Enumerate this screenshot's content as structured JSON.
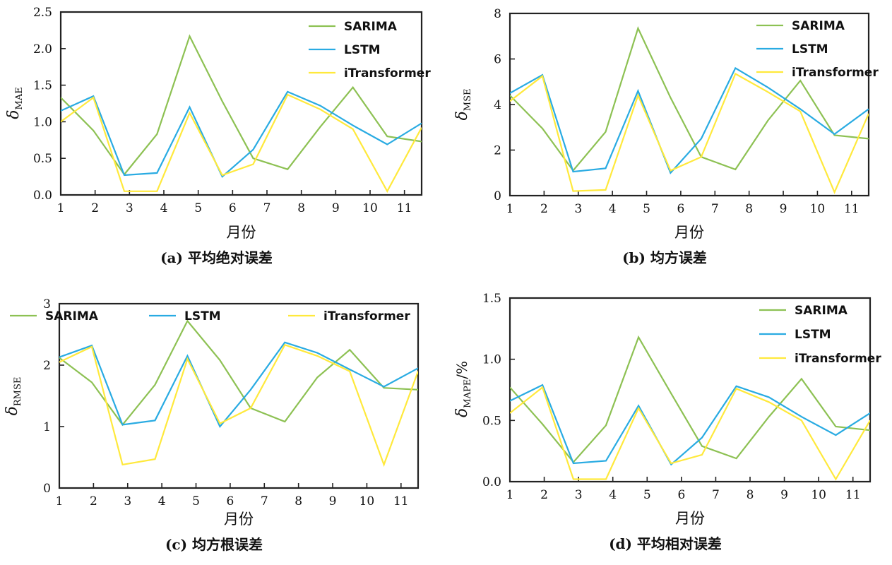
{
  "colors": {
    "SARIMA": "#8dc153",
    "LSTM": "#29abe2",
    "iTransformer": "#ffe93c",
    "axis": "#222222"
  },
  "chart_data": [
    {
      "panel": "a",
      "type": "line",
      "caption": "(a) 平均绝对误差",
      "xlabel": "月份",
      "ylabel_symbol": "δ",
      "ylabel_sub": "MAE",
      "ylabel_rest": "",
      "xlim": [
        1,
        11.5
      ],
      "ylim": [
        0,
        2.5
      ],
      "xticks": [
        "1",
        "2",
        "3",
        "4",
        "5",
        "6",
        "7",
        "8",
        "9",
        "10",
        "11"
      ],
      "yticks": [
        "0.0",
        "0.5",
        "1.0",
        "1.5",
        "2.0",
        "2.5"
      ],
      "legend_position": "top-right",
      "x": [
        1,
        1.95,
        2.85,
        3.8,
        4.75,
        5.7,
        6.6,
        7.6,
        8.55,
        9.5,
        10.5,
        11.5
      ],
      "series": [
        {
          "name": "SARIMA",
          "values": [
            1.33,
            0.88,
            0.28,
            0.83,
            2.17,
            1.28,
            0.5,
            0.35,
            0.93,
            1.47,
            0.8,
            0.73
          ]
        },
        {
          "name": "LSTM",
          "values": [
            1.15,
            1.35,
            0.27,
            0.3,
            1.2,
            0.25,
            0.62,
            1.41,
            1.22,
            0.95,
            0.69,
            0.98
          ]
        },
        {
          "name": "iTransformer",
          "values": [
            1.0,
            1.33,
            0.05,
            0.05,
            1.12,
            0.27,
            0.42,
            1.37,
            1.17,
            0.9,
            0.05,
            0.92
          ]
        }
      ]
    },
    {
      "panel": "b",
      "type": "line",
      "caption": "(b) 均方误差",
      "xlabel": "月份",
      "ylabel_symbol": "δ",
      "ylabel_sub": "MSE",
      "ylabel_rest": "",
      "xlim": [
        1,
        11.5
      ],
      "ylim": [
        0,
        8
      ],
      "xticks": [
        "1",
        "2",
        "3",
        "4",
        "5",
        "6",
        "7",
        "8",
        "9",
        "10",
        "11"
      ],
      "yticks": [
        "0",
        "2",
        "4",
        "6",
        "8"
      ],
      "legend_position": "top-right",
      "x": [
        1,
        1.95,
        2.85,
        3.8,
        4.75,
        5.7,
        6.6,
        7.6,
        8.55,
        9.5,
        10.5,
        11.5
      ],
      "series": [
        {
          "name": "SARIMA",
          "values": [
            4.4,
            2.95,
            1.1,
            2.8,
            7.35,
            4.3,
            1.7,
            1.15,
            3.3,
            5.05,
            2.65,
            2.5
          ]
        },
        {
          "name": "LSTM",
          "values": [
            4.5,
            5.3,
            1.05,
            1.2,
            4.6,
            1.0,
            2.5,
            5.6,
            4.75,
            3.8,
            2.7,
            3.8
          ]
        },
        {
          "name": "iTransformer",
          "values": [
            4.15,
            5.25,
            0.2,
            0.25,
            4.4,
            1.1,
            1.7,
            5.35,
            4.55,
            3.7,
            0.15,
            3.6
          ]
        }
      ]
    },
    {
      "panel": "c",
      "type": "line",
      "caption": "(c) 均方根误差",
      "xlabel": "月份",
      "ylabel_symbol": "δ",
      "ylabel_sub": "RMSE",
      "ylabel_rest": "",
      "xlim": [
        1,
        11.5
      ],
      "ylim": [
        0,
        3
      ],
      "xticks": [
        "1",
        "2",
        "3",
        "4",
        "5",
        "6",
        "7",
        "8",
        "9",
        "10",
        "11"
      ],
      "yticks": [
        "0",
        "1",
        "2",
        "3"
      ],
      "legend_position": "top",
      "x": [
        1,
        1.95,
        2.85,
        3.8,
        4.75,
        5.7,
        6.6,
        7.6,
        8.55,
        9.5,
        10.5,
        11.5
      ],
      "series": [
        {
          "name": "SARIMA",
          "values": [
            2.12,
            1.72,
            1.03,
            1.68,
            2.72,
            2.08,
            1.3,
            1.08,
            1.8,
            2.25,
            1.63,
            1.6
          ]
        },
        {
          "name": "LSTM",
          "values": [
            2.13,
            2.32,
            1.03,
            1.1,
            2.15,
            1.0,
            1.6,
            2.37,
            2.2,
            1.93,
            1.65,
            1.95
          ]
        },
        {
          "name": "iTransformer",
          "values": [
            2.05,
            2.3,
            0.38,
            0.47,
            2.1,
            1.05,
            1.3,
            2.33,
            2.15,
            1.9,
            0.38,
            1.9
          ]
        }
      ]
    },
    {
      "panel": "d",
      "type": "line",
      "caption": "(d) 平均相对误差",
      "xlabel": "月份",
      "ylabel_symbol": "δ",
      "ylabel_sub": "MAPE",
      "ylabel_rest": "/%",
      "xlim": [
        1,
        11.5
      ],
      "ylim": [
        0,
        1.5
      ],
      "xticks": [
        "1",
        "2",
        "3",
        "4",
        "5",
        "6",
        "7",
        "8",
        "9",
        "10",
        "11"
      ],
      "yticks": [
        "0.0",
        "0.5",
        "1.0",
        "1.5"
      ],
      "legend_position": "top-right",
      "x": [
        1,
        1.95,
        2.85,
        3.8,
        4.75,
        5.7,
        6.6,
        7.6,
        8.55,
        9.5,
        10.5,
        11.5
      ],
      "series": [
        {
          "name": "SARIMA",
          "values": [
            0.77,
            0.47,
            0.16,
            0.46,
            1.18,
            0.72,
            0.29,
            0.19,
            0.53,
            0.84,
            0.45,
            0.42
          ]
        },
        {
          "name": "LSTM",
          "values": [
            0.66,
            0.79,
            0.15,
            0.17,
            0.62,
            0.14,
            0.36,
            0.78,
            0.69,
            0.53,
            0.38,
            0.56
          ]
        },
        {
          "name": "iTransformer",
          "values": [
            0.56,
            0.77,
            0.02,
            0.02,
            0.6,
            0.15,
            0.22,
            0.76,
            0.65,
            0.5,
            0.02,
            0.5
          ]
        }
      ]
    }
  ]
}
